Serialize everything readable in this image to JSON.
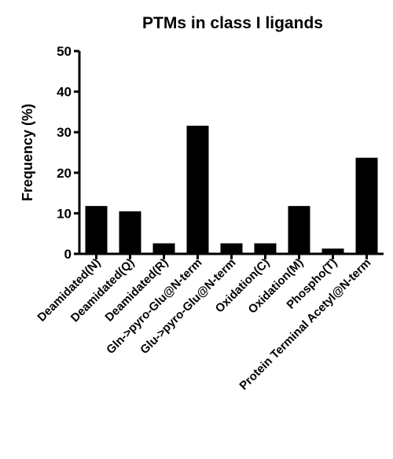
{
  "chart_data": {
    "type": "bar",
    "title": "PTMs in class I ligands",
    "xlabel": "",
    "ylabel": "Frequency (%)",
    "ylim": [
      0,
      50
    ],
    "yticks": [
      "0",
      "10",
      "20",
      "30",
      "40",
      "50"
    ],
    "categories": [
      "Deamidated(N)",
      "Deamidated(Q)",
      "Deamidated(R)",
      "Gln->pyro-Glu@N-term",
      "Glu->pyro-Glu@N-term",
      "Oxidation(C)",
      "Oxidation(M)",
      "Phospho(T)",
      "Protein Terminal Acetyl@N-term"
    ],
    "values": [
      11.8,
      10.5,
      2.6,
      31.6,
      2.6,
      2.6,
      11.8,
      1.3,
      23.7
    ],
    "grid": false,
    "legend": "none",
    "bar_color": "#000000"
  }
}
